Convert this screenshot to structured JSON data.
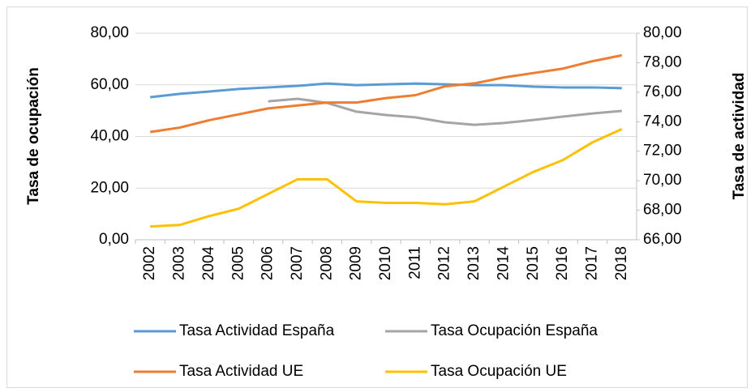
{
  "chart_data": {
    "type": "line",
    "y_label": "Tasa de ocupación",
    "y2_label": "Tasa de actividad",
    "categories": [
      "2002",
      "2003",
      "2004",
      "2005",
      "2006",
      "2007",
      "2008",
      "2009",
      "2010",
      "2011",
      "2012",
      "2013",
      "2014",
      "2015",
      "2016",
      "2017",
      "2018"
    ],
    "series": [
      {
        "name": "Tasa Actividad España",
        "color": "#5b9bd5",
        "axis": "y",
        "values": [
          55.2,
          56.5,
          57.4,
          58.4,
          59.0,
          59.6,
          60.5,
          59.9,
          60.2,
          60.5,
          60.2,
          59.9,
          59.9,
          59.3,
          59.0,
          59.0,
          58.7
        ]
      },
      {
        "name": "Tasa Ocupación España",
        "color": "#a5a5a5",
        "axis": "y",
        "values": [
          null,
          null,
          null,
          null,
          53.6,
          54.6,
          53.0,
          49.6,
          48.3,
          47.4,
          45.5,
          44.5,
          45.2,
          46.4,
          47.7,
          48.9,
          49.9
        ]
      },
      {
        "name": "Tasa Actividad UE",
        "color": "#ed7d31",
        "axis": "y2",
        "values": [
          73.3,
          73.6,
          74.1,
          74.5,
          74.9,
          75.1,
          75.3,
          75.3,
          75.6,
          75.8,
          76.4,
          76.6,
          77.0,
          77.3,
          77.6,
          78.1,
          78.5
        ]
      },
      {
        "name": "Tasa Ocupación UE",
        "color": "#ffc000",
        "axis": "y2",
        "values": [
          66.9,
          67.0,
          67.6,
          68.1,
          69.1,
          70.1,
          70.1,
          68.6,
          68.5,
          68.5,
          68.4,
          68.6,
          69.6,
          70.6,
          71.4,
          72.6,
          73.5
        ]
      }
    ],
    "ylim": [
      0,
      80
    ],
    "yticks": [
      {
        "value": 0,
        "label": "0,00"
      },
      {
        "value": 20,
        "label": "20,00"
      },
      {
        "value": 40,
        "label": "40,00"
      },
      {
        "value": 60,
        "label": "60,00"
      },
      {
        "value": 80,
        "label": "80,00"
      }
    ],
    "y2lim": [
      66,
      80
    ],
    "y2ticks": [
      {
        "value": 66,
        "label": "66,00"
      },
      {
        "value": 68,
        "label": "68,00"
      },
      {
        "value": 70,
        "label": "70,00"
      },
      {
        "value": 72,
        "label": "72,00"
      },
      {
        "value": 74,
        "label": "74,00"
      },
      {
        "value": 76,
        "label": "76,00"
      },
      {
        "value": 78,
        "label": "78,00"
      },
      {
        "value": 80,
        "label": "80,00"
      }
    ],
    "grid": true
  }
}
